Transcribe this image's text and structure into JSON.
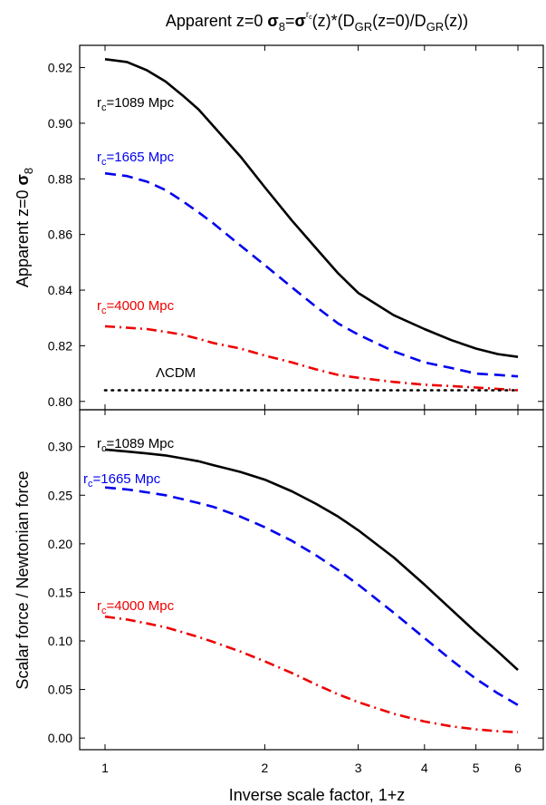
{
  "chart_data": [
    {
      "type": "line",
      "title": "Apparent z=0 σ₈=σ₈^{r_c}(z)*(D_GR(z=0)/D_GR(z))",
      "title_parts": {
        "a": "Apparent z=0 ",
        "sigma": "σ",
        "sub8": "8",
        "eq": "=",
        "sup_r": "r",
        "sup_c": "c",
        "b": "(z)*(D",
        "gr1": "GR",
        "c": "(z=0)/D",
        "gr2": "GR",
        "d": "(z))"
      },
      "ylabel": "Apparent z=0 σ8",
      "ylabel_parts": {
        "text": "Apparent z=0 ",
        "sigma": "σ",
        "sub": "8"
      },
      "xlabel": "",
      "x_scale": "log",
      "xlim": [
        1,
        6
      ],
      "ylim": [
        0.797,
        0.928
      ],
      "yticks": [
        0.8,
        0.82,
        0.84,
        0.86,
        0.88,
        0.9,
        0.92
      ],
      "ytick_labels": [
        "0.80",
        "0.82",
        "0.84",
        "0.86",
        "0.88",
        "0.90",
        "0.92"
      ],
      "grid": false,
      "series": [
        {
          "name": "rc=1089 Mpc",
          "label_main": "r",
          "label_sub": "c",
          "label_rest": "=1089 Mpc",
          "color": "#000000",
          "dash": "solid",
          "x": [
            1.0,
            1.1,
            1.2,
            1.3,
            1.4,
            1.5,
            1.6,
            1.8,
            2.0,
            2.25,
            2.5,
            2.75,
            3.0,
            3.5,
            4.0,
            4.5,
            5.0,
            5.5,
            6.0
          ],
          "y": [
            0.923,
            0.922,
            0.919,
            0.915,
            0.91,
            0.905,
            0.899,
            0.888,
            0.877,
            0.865,
            0.855,
            0.846,
            0.839,
            0.831,
            0.826,
            0.822,
            0.819,
            0.817,
            0.816
          ]
        },
        {
          "name": "rc=1665 Mpc",
          "label_main": "r",
          "label_sub": "c",
          "label_rest": "=1665 Mpc",
          "color": "#0000ee",
          "dash": "dashed",
          "x": [
            1.0,
            1.1,
            1.2,
            1.3,
            1.4,
            1.5,
            1.6,
            1.8,
            2.0,
            2.25,
            2.5,
            2.75,
            3.0,
            3.5,
            4.0,
            4.5,
            5.0,
            5.5,
            6.0
          ],
          "y": [
            0.882,
            0.881,
            0.879,
            0.876,
            0.872,
            0.868,
            0.864,
            0.856,
            0.849,
            0.841,
            0.834,
            0.828,
            0.824,
            0.818,
            0.814,
            0.812,
            0.81,
            0.8095,
            0.809
          ]
        },
        {
          "name": "rc=4000 Mpc",
          "label_main": "r",
          "label_sub": "c",
          "label_rest": "=4000 Mpc",
          "color": "#ee0000",
          "dash": "dashdot",
          "x": [
            1.0,
            1.1,
            1.2,
            1.3,
            1.4,
            1.5,
            1.6,
            1.8,
            2.0,
            2.25,
            2.5,
            2.75,
            3.0,
            3.5,
            4.0,
            4.5,
            5.0,
            5.5,
            6.0
          ],
          "y": [
            0.827,
            0.8265,
            0.826,
            0.825,
            0.824,
            0.8225,
            0.821,
            0.819,
            0.8165,
            0.814,
            0.8115,
            0.8095,
            0.8085,
            0.807,
            0.806,
            0.8055,
            0.805,
            0.8045,
            0.804
          ]
        },
        {
          "name": "ΛCDM",
          "label_main": "ΛCDM",
          "label_sub": "",
          "label_rest": "",
          "color": "#000000",
          "dash": "dotted",
          "x": [
            1.0,
            6.0
          ],
          "y": [
            0.804,
            0.804
          ]
        }
      ]
    },
    {
      "type": "line",
      "title": "",
      "ylabel": "Scalar force / Newtonian force",
      "xlabel": "Inverse scale factor, 1+z",
      "x_scale": "log",
      "xlim": [
        1,
        6
      ],
      "ylim": [
        -0.012,
        0.338
      ],
      "yticks": [
        0.0,
        0.05,
        0.1,
        0.15,
        0.2,
        0.25,
        0.3
      ],
      "ytick_labels": [
        "0.00",
        "0.05",
        "0.10",
        "0.15",
        "0.20",
        "0.25",
        "0.30"
      ],
      "xticks": [
        1,
        2,
        3,
        4,
        5,
        6
      ],
      "xtick_labels": [
        "1",
        "2",
        "3",
        "4",
        "5",
        "6"
      ],
      "grid": false,
      "series": [
        {
          "name": "rc=1089 Mpc",
          "label_main": "r",
          "label_sub": "c",
          "label_rest": "=1089 Mpc",
          "color": "#000000",
          "dash": "solid",
          "x": [
            1.0,
            1.1,
            1.2,
            1.3,
            1.4,
            1.5,
            1.6,
            1.8,
            2.0,
            2.25,
            2.5,
            2.75,
            3.0,
            3.5,
            4.0,
            4.5,
            5.0,
            5.5,
            6.0
          ],
          "y": [
            0.297,
            0.295,
            0.293,
            0.291,
            0.288,
            0.285,
            0.281,
            0.274,
            0.266,
            0.254,
            0.241,
            0.228,
            0.214,
            0.186,
            0.158,
            0.132,
            0.109,
            0.089,
            0.07
          ]
        },
        {
          "name": "rc=1665 Mpc",
          "label_main": "r",
          "label_sub": "c",
          "label_rest": "=1665 Mpc",
          "color": "#0000ee",
          "dash": "dashed",
          "x": [
            1.0,
            1.1,
            1.2,
            1.3,
            1.4,
            1.5,
            1.6,
            1.8,
            2.0,
            2.25,
            2.5,
            2.75,
            3.0,
            3.5,
            4.0,
            4.5,
            5.0,
            5.5,
            6.0
          ],
          "y": [
            0.258,
            0.256,
            0.253,
            0.25,
            0.246,
            0.242,
            0.238,
            0.228,
            0.217,
            0.203,
            0.188,
            0.173,
            0.158,
            0.129,
            0.103,
            0.08,
            0.061,
            0.046,
            0.034
          ]
        },
        {
          "name": "rc=4000 Mpc",
          "label_main": "r",
          "label_sub": "c",
          "label_rest": "=4000 Mpc",
          "color": "#ee0000",
          "dash": "dashdot",
          "x": [
            1.0,
            1.1,
            1.2,
            1.3,
            1.4,
            1.5,
            1.6,
            1.8,
            2.0,
            2.25,
            2.5,
            2.75,
            3.0,
            3.5,
            4.0,
            4.5,
            5.0,
            5.5,
            6.0
          ],
          "y": [
            0.125,
            0.122,
            0.118,
            0.114,
            0.109,
            0.104,
            0.099,
            0.089,
            0.079,
            0.067,
            0.055,
            0.045,
            0.037,
            0.025,
            0.017,
            0.012,
            0.009,
            0.007,
            0.006
          ]
        }
      ]
    }
  ]
}
